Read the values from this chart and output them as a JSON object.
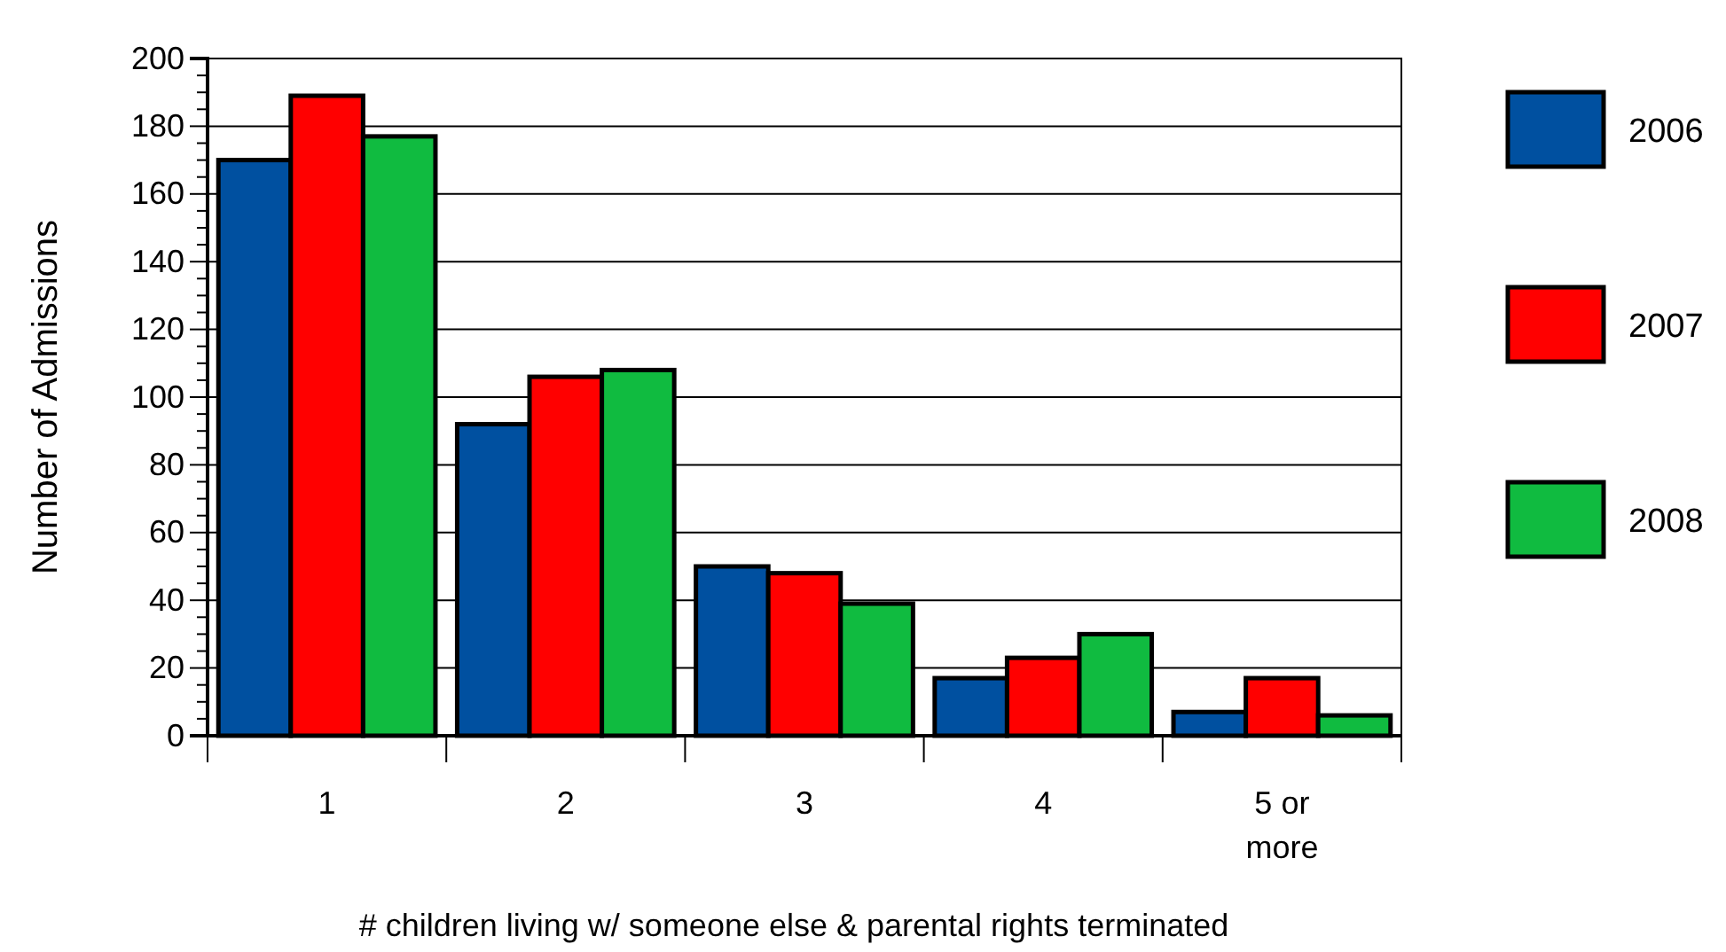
{
  "chart_data": {
    "type": "bar",
    "xlabel": "# children living w/ someone else & parental rights terminated",
    "ylabel": "Number of Admissions",
    "categories": [
      "1",
      "2",
      "3",
      "4",
      "5 or more"
    ],
    "series": [
      {
        "name": "2006",
        "color": "#0050a0",
        "values": [
          170,
          92,
          50,
          17,
          7
        ]
      },
      {
        "name": "2007",
        "color": "#ff0000",
        "values": [
          189,
          106,
          48,
          23,
          17
        ]
      },
      {
        "name": "2008",
        "color": "#10bb40",
        "values": [
          177,
          108,
          39,
          30,
          6
        ]
      }
    ],
    "ylim": [
      0,
      200
    ],
    "yticks": [
      0,
      20,
      40,
      60,
      80,
      100,
      120,
      140,
      160,
      180,
      200
    ],
    "grid": "y",
    "legend": "right"
  }
}
